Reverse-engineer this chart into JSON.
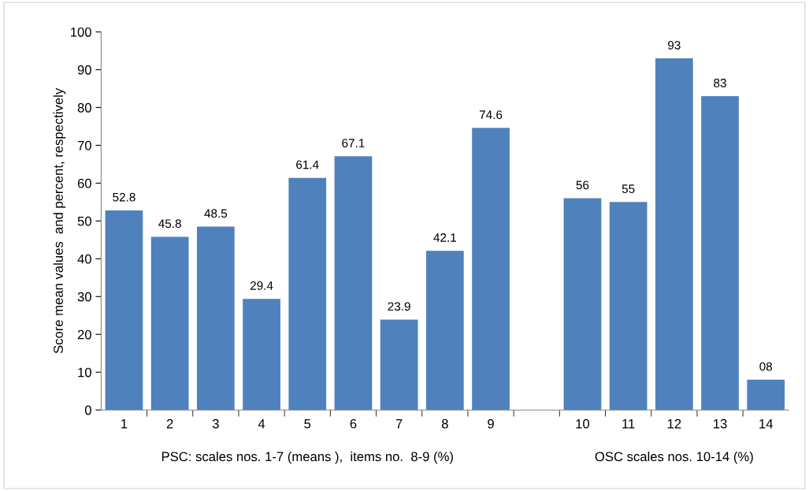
{
  "chart_data": {
    "type": "bar",
    "ylabel": "Score mean values  and percent, respectively",
    "categories": [
      "1",
      "2",
      "3",
      "4",
      "5",
      "6",
      "7",
      "8",
      "9",
      null,
      "10",
      "11",
      "12",
      "13",
      "14"
    ],
    "values": [
      52.8,
      45.8,
      48.5,
      29.4,
      61.4,
      67.1,
      23.9,
      42.1,
      74.6,
      null,
      56,
      55,
      93,
      83,
      8
    ],
    "value_labels": [
      "52.8",
      "45.8",
      "48.5",
      "29.4",
      "61.4",
      "67.1",
      "23.9",
      "42.1",
      "74.6",
      null,
      "56",
      "55",
      "93",
      "83",
      "08"
    ],
    "color": "#4f81bd",
    "ylim": [
      0,
      100
    ],
    "yticks": [
      0,
      10,
      20,
      30,
      40,
      50,
      60,
      70,
      80,
      90,
      100
    ],
    "grid": false,
    "legend": false,
    "annotations": [
      "PSC: scales nos. 1-7 (means ),  items no.  8-9 (%)",
      "OSC scales nos. 10-14 (%)"
    ]
  }
}
